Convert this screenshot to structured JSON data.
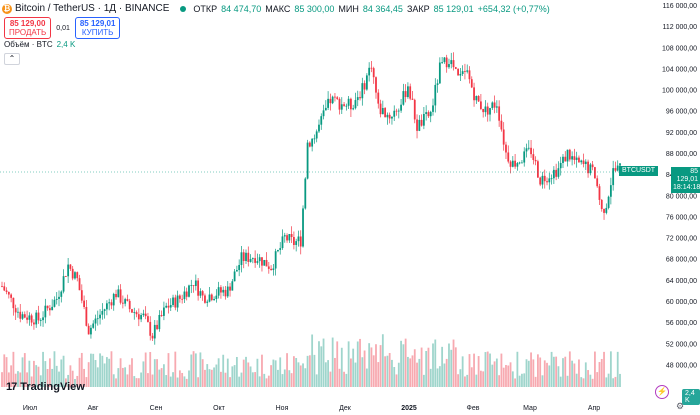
{
  "header": {
    "symbol_title": "Bitcoin / TetherUS · 1Д · BINANCE",
    "open_label": "ОТКР",
    "open_value": "84 474,70",
    "high_label": "МАКС",
    "high_value": "85 300,00",
    "low_label": "МИН",
    "low_value": "84 364,45",
    "close_label": "ЗАКР",
    "close_value": "85 129,01",
    "change": "+654,32 (+0,77%)",
    "logo_icon": "bitcoin-logo-icon"
  },
  "trade": {
    "sell_price": "85 129,00",
    "sell_label": "ПРОДАТЬ",
    "spread": "0,01",
    "buy_price": "85 129,01",
    "buy_label": "КУПИТЬ"
  },
  "volume_legend": {
    "label": "Объём · BTC",
    "value": "2,4 K"
  },
  "collapse_icon": "chevron-up-icon",
  "price_axis": [
    "116 000,00",
    "112 000,00",
    "108 000,00",
    "104 000,00",
    "100 000,00",
    "96 000,00",
    "92 000,00",
    "88 000,00",
    "84 000,00",
    "80 000,00",
    "76 000,00",
    "72 000,00",
    "68 000,00",
    "64 000,00",
    "60 000,00",
    "56 000,00",
    "52 000,00",
    "48 000,00"
  ],
  "time_axis": [
    "Июл",
    "Авг",
    "Сен",
    "Окт",
    "Ноя",
    "Дек",
    "2025",
    "Фев",
    "Мар",
    "Апр"
  ],
  "last_price": {
    "symbol": "BTCUSDT",
    "price": "85 129,01",
    "countdown": "18:14:18"
  },
  "volume_badge": "2,4 K",
  "branding": {
    "logo_text": "TradingView",
    "mark": "17"
  },
  "colors": {
    "up": "#089981",
    "down": "#f23645",
    "vol_up": "#9fd5cc",
    "vol_down": "#f7a9b0"
  },
  "chart_data": {
    "type": "candlestick",
    "ylim": [
      46000,
      116000
    ],
    "tick_labels_x": [
      "Июл",
      "Авг",
      "Сен",
      "Окт",
      "Ноя",
      "Дек",
      "2025",
      "Фев",
      "Мар",
      "Апр"
    ],
    "series": [
      {
        "name": "close_path_points",
        "values": [
          [
            0,
            62800
          ],
          [
            8,
            57500
          ],
          [
            16,
            56500
          ],
          [
            24,
            60500
          ],
          [
            29,
            66800
          ],
          [
            33,
            64000
          ],
          [
            38,
            54500
          ],
          [
            44,
            58000
          ],
          [
            50,
            61500
          ],
          [
            56,
            58500
          ],
          [
            62,
            57000
          ],
          [
            66,
            53500
          ],
          [
            72,
            58800
          ],
          [
            78,
            60500
          ],
          [
            84,
            63700
          ],
          [
            88,
            60800
          ],
          [
            94,
            61500
          ],
          [
            99,
            62000
          ],
          [
            105,
            68000
          ],
          [
            111,
            68500
          ],
          [
            118,
            66500
          ],
          [
            122,
            70000
          ],
          [
            124,
            72000
          ],
          [
            128,
            71000
          ],
          [
            131,
            71500
          ],
          [
            134,
            90000
          ],
          [
            137,
            91000
          ],
          [
            140,
            94000
          ],
          [
            144,
            98000
          ],
          [
            148,
            97500
          ],
          [
            153,
            97000
          ],
          [
            158,
            100000
          ],
          [
            162,
            105000
          ],
          [
            165,
            96500
          ],
          [
            170,
            95000
          ],
          [
            175,
            97200
          ],
          [
            178,
            101000
          ],
          [
            182,
            93000
          ],
          [
            185,
            94200
          ],
          [
            188,
            95500
          ],
          [
            192,
            104000
          ],
          [
            196,
            106000
          ],
          [
            200,
            102000
          ],
          [
            204,
            103000
          ],
          [
            208,
            98000
          ],
          [
            212,
            96000
          ],
          [
            217,
            97500
          ],
          [
            221,
            88000
          ],
          [
            224,
            86000
          ],
          [
            228,
            87000
          ],
          [
            232,
            88500
          ],
          [
            236,
            83000
          ],
          [
            240,
            84000
          ],
          [
            244,
            85000
          ],
          [
            248,
            88000
          ],
          [
            252,
            86000
          ],
          [
            256,
            85500
          ],
          [
            260,
            84000
          ],
          [
            263,
            77000
          ],
          [
            265,
            78500
          ],
          [
            268,
            84500
          ],
          [
            271,
            85129
          ]
        ]
      }
    ]
  }
}
